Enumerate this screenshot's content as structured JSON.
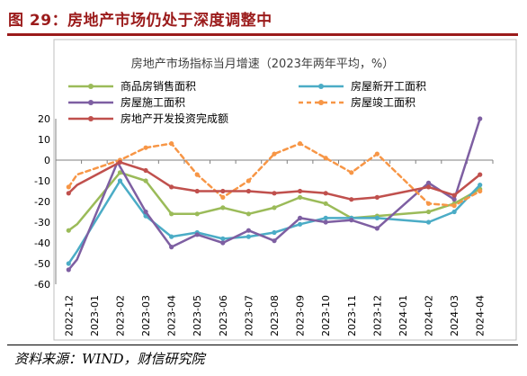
{
  "figure": {
    "title": "图 29：房地产市场仍处于深度调整中",
    "source": "资料来源：WIND，财信研究院"
  },
  "chart_data": {
    "type": "line",
    "title": "房地产市场指标当月增速（2023年两年平均，%）",
    "categories": [
      "2022-12",
      "2023-01",
      "2023-02",
      "2023-03",
      "2023-04",
      "2023-05",
      "2023-06",
      "2023-07",
      "2023-08",
      "2023-09",
      "2023-10",
      "2023-11",
      "2023-12",
      "2024-01",
      "2024-02",
      "2024-03",
      "2024-04"
    ],
    "ylim": [
      -60,
      20
    ],
    "yticks": [
      20,
      10,
      0,
      -10,
      -20,
      -30,
      -40,
      -50,
      -60
    ],
    "grid": false,
    "legend_placement": "top",
    "series": [
      {
        "name": "商品房销售面积",
        "color": "#9bbb59",
        "dash": "solid",
        "points": [
          [
            0,
            -34
          ],
          [
            0.33,
            -31
          ],
          [
            2,
            -6
          ],
          [
            3,
            -10
          ],
          [
            4,
            -26
          ],
          [
            5,
            -26
          ],
          [
            6,
            -23
          ],
          [
            7,
            -26
          ],
          [
            8,
            -23
          ],
          [
            9,
            -18
          ],
          [
            10,
            -21
          ],
          [
            11,
            -28
          ],
          [
            12,
            -27
          ],
          [
            14,
            -25
          ],
          [
            15,
            -21
          ],
          [
            16,
            -14
          ]
        ]
      },
      {
        "name": "房屋新开工面积",
        "color": "#4bacc6",
        "dash": "solid",
        "points": [
          [
            0,
            -50
          ],
          [
            0.33,
            -44
          ],
          [
            2,
            -10
          ],
          [
            3,
            -27
          ],
          [
            4,
            -37
          ],
          [
            5,
            -35
          ],
          [
            6,
            -38
          ],
          [
            7,
            -37
          ],
          [
            8,
            -35
          ],
          [
            9,
            -31
          ],
          [
            10,
            -28
          ],
          [
            11,
            -28
          ],
          [
            12,
            -28
          ],
          [
            14,
            -30
          ],
          [
            15,
            -25
          ],
          [
            16,
            -12
          ]
        ]
      },
      {
        "name": "房屋施工面积",
        "color": "#7e5fa2",
        "dash": "solid",
        "points": [
          [
            0,
            -53
          ],
          [
            0.33,
            -48
          ],
          [
            1.9,
            -1
          ],
          [
            3,
            -25
          ],
          [
            4,
            -42
          ],
          [
            5,
            -36
          ],
          [
            6,
            -40
          ],
          [
            7,
            -34
          ],
          [
            8,
            -39
          ],
          [
            9,
            -28
          ],
          [
            10,
            -30
          ],
          [
            11,
            -29
          ],
          [
            12,
            -33
          ],
          [
            14,
            -11
          ],
          [
            15,
            -19
          ],
          [
            16,
            20
          ]
        ]
      },
      {
        "name": "房屋竣工面积",
        "color": "#f79646",
        "dash": "dashed",
        "points": [
          [
            0,
            -13
          ],
          [
            0.33,
            -7
          ],
          [
            2,
            0
          ],
          [
            3,
            6
          ],
          [
            4,
            8
          ],
          [
            5,
            -7
          ],
          [
            6,
            -18
          ],
          [
            7,
            -10
          ],
          [
            8,
            3
          ],
          [
            9,
            8
          ],
          [
            10,
            1
          ],
          [
            11,
            -6
          ],
          [
            12,
            3
          ],
          [
            14,
            -21
          ],
          [
            15,
            -22
          ],
          [
            16,
            -15
          ]
        ]
      },
      {
        "name": "房地产开发投资完成额",
        "color": "#c0504d",
        "dash": "solid",
        "points": [
          [
            0,
            -16
          ],
          [
            0.33,
            -12
          ],
          [
            2,
            -1
          ],
          [
            3,
            -5
          ],
          [
            4,
            -13
          ],
          [
            5,
            -15
          ],
          [
            6,
            -15
          ],
          [
            7,
            -15
          ],
          [
            8,
            -16
          ],
          [
            9,
            -15
          ],
          [
            10,
            -16
          ],
          [
            11,
            -19
          ],
          [
            12,
            -18
          ],
          [
            14,
            -13
          ],
          [
            15,
            -17
          ],
          [
            16,
            -7
          ]
        ]
      }
    ]
  }
}
